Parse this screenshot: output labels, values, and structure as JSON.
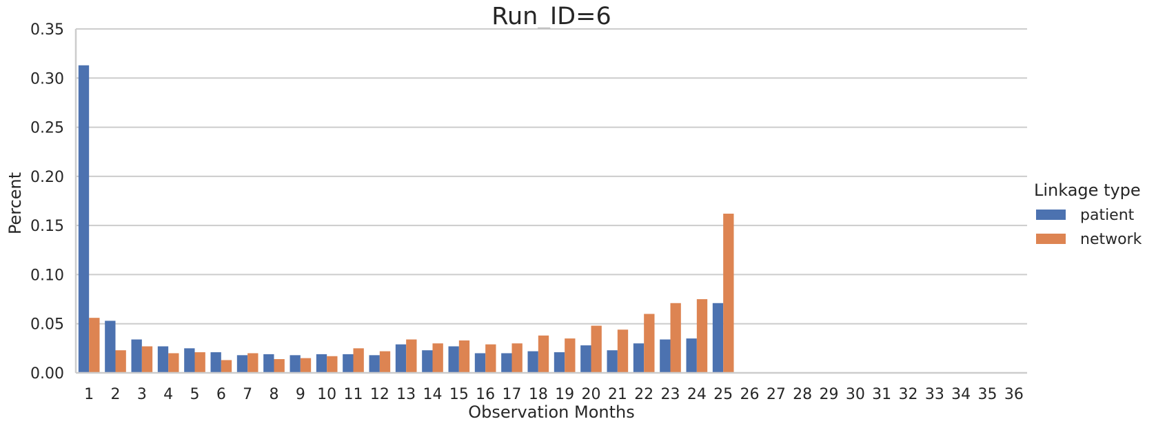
{
  "chart_data": {
    "type": "bar",
    "title": "Run_ID=6",
    "xlabel": "Observation Months",
    "ylabel": "Percent",
    "ylim": [
      0,
      0.35
    ],
    "yticks": [
      "0.00",
      "0.05",
      "0.10",
      "0.15",
      "0.20",
      "0.25",
      "0.30",
      "0.35"
    ],
    "grid": "horizontal",
    "legend_position": "right",
    "legend_title": "Linkage type",
    "categories": [
      "1",
      "2",
      "3",
      "4",
      "5",
      "6",
      "7",
      "8",
      "9",
      "10",
      "11",
      "12",
      "13",
      "14",
      "15",
      "16",
      "17",
      "18",
      "19",
      "20",
      "21",
      "22",
      "23",
      "24",
      "25",
      "26",
      "27",
      "28",
      "29",
      "30",
      "31",
      "32",
      "33",
      "34",
      "35",
      "36"
    ],
    "series": [
      {
        "name": "patient",
        "color": "#4c72b0",
        "values": [
          0.313,
          0.053,
          0.034,
          0.027,
          0.025,
          0.021,
          0.018,
          0.019,
          0.018,
          0.019,
          0.019,
          0.018,
          0.029,
          0.023,
          0.027,
          0.02,
          0.02,
          0.022,
          0.021,
          0.028,
          0.023,
          0.03,
          0.034,
          0.035,
          0.071,
          0,
          0,
          0,
          0,
          0,
          0,
          0,
          0,
          0,
          0,
          0
        ]
      },
      {
        "name": "network",
        "color": "#dd8452",
        "values": [
          0.056,
          0.023,
          0.027,
          0.02,
          0.021,
          0.013,
          0.02,
          0.014,
          0.015,
          0.017,
          0.025,
          0.022,
          0.034,
          0.03,
          0.033,
          0.029,
          0.03,
          0.038,
          0.035,
          0.048,
          0.044,
          0.06,
          0.071,
          0.075,
          0.162,
          0,
          0,
          0,
          0,
          0,
          0,
          0,
          0,
          0,
          0,
          0
        ]
      }
    ]
  }
}
